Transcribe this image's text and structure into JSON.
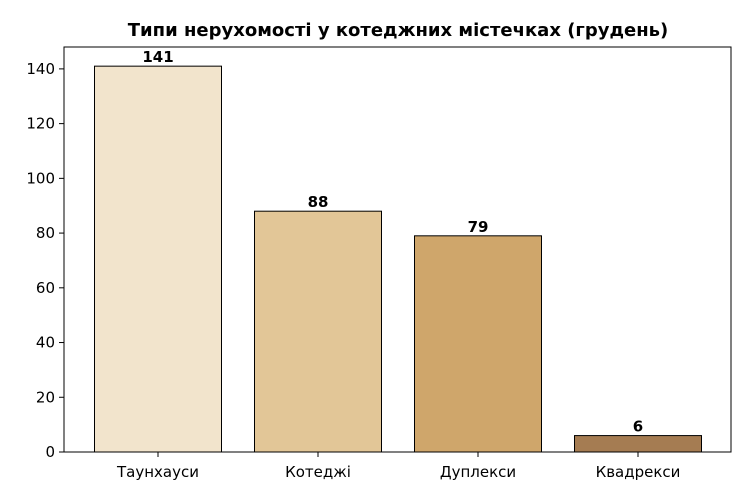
{
  "chart_data": {
    "type": "bar",
    "title": "Типи нерухомості у котеджних містечках (грудень)",
    "xlabel": "",
    "ylabel": "",
    "categories": [
      "Таунхауси",
      "Котеджі",
      "Дуплекси",
      "Квадрекси"
    ],
    "values": [
      141,
      88,
      79,
      6
    ],
    "data_labels": [
      "141",
      "88",
      "79",
      "6"
    ],
    "bar_colors": [
      "#f2e4cc",
      "#e2c697",
      "#cfa66b",
      "#a57c52"
    ],
    "ylim": [
      0,
      148
    ],
    "yticks": [
      0,
      20,
      40,
      60,
      80,
      100,
      120,
      140
    ],
    "ytick_labels": [
      "0",
      "20",
      "40",
      "60",
      "80",
      "100",
      "120",
      "140"
    ],
    "grid": false,
    "legend": "none"
  }
}
